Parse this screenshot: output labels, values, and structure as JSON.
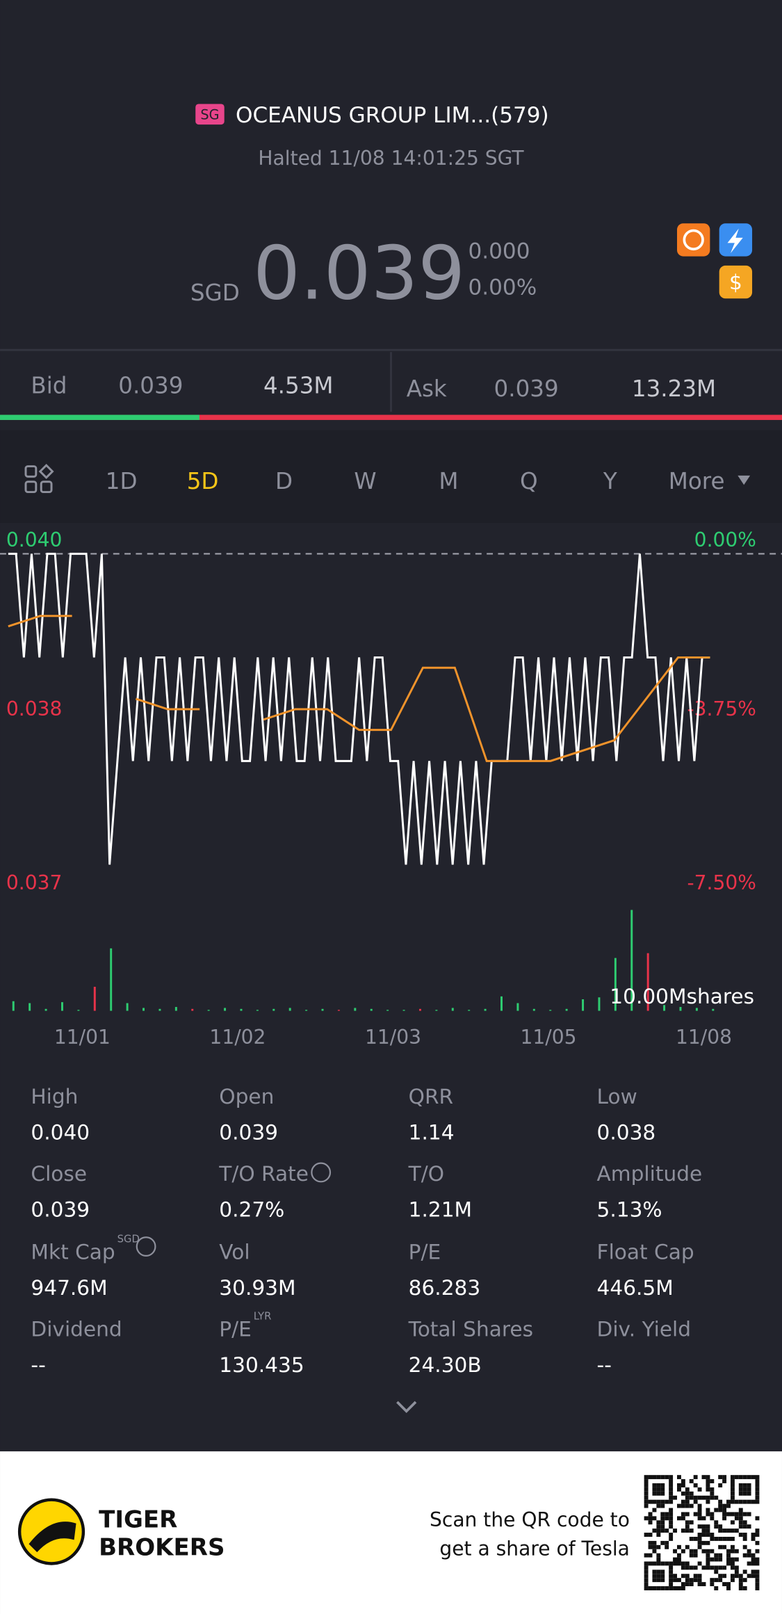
{
  "header": {
    "badge": "SG",
    "title": "OCEANUS GROUP LIM...(579)",
    "status": "Halted 11/08 14:01:25 SGT"
  },
  "quote": {
    "currency": "SGD",
    "price": "0.039",
    "change": "0.000",
    "change_pct": "0.00%"
  },
  "order_book": {
    "bid_label": "Bid",
    "bid_price": "0.039",
    "bid_size": "4.53M",
    "ask_label": "Ask",
    "ask_price": "0.039",
    "ask_size": "13.23M",
    "bid_share": 25.5
  },
  "tabs": [
    "1D",
    "5D",
    "D",
    "W",
    "M",
    "Q",
    "Y",
    "More"
  ],
  "active_tab": 1,
  "chart_data": {
    "type": "line",
    "ylim": [
      0.037,
      0.04
    ],
    "reference": 0.04,
    "price_labels": [
      "0.040",
      "0.038",
      "0.037"
    ],
    "pct_labels": [
      "0.00%",
      "-3.75%",
      "-7.50%"
    ],
    "categories": [
      "11/01",
      "11/02",
      "11/03",
      "11/05",
      "11/08"
    ],
    "price": {
      "color": "#ffffff",
      "values": [
        0.04,
        0.04,
        0.039,
        0.04,
        0.039,
        0.04,
        0.04,
        0.039,
        0.04,
        0.04,
        0.04,
        0.039,
        0.04,
        0.037,
        0.038,
        0.039,
        0.038,
        0.039,
        0.038,
        0.039,
        0.039,
        0.038,
        0.039,
        0.038,
        0.039,
        0.039,
        0.038,
        0.039,
        0.038,
        0.039,
        0.038,
        0.038,
        0.039,
        0.038,
        0.039,
        0.038,
        0.039,
        0.038,
        0.038,
        0.039,
        0.038,
        0.039,
        0.038,
        0.038,
        0.038,
        0.039,
        0.038,
        0.039,
        0.039,
        0.038,
        0.038,
        0.037,
        0.038,
        0.037,
        0.038,
        0.037,
        0.038,
        0.037,
        0.038,
        0.037,
        0.038,
        0.037,
        0.038,
        0.038,
        0.038,
        0.039,
        0.039,
        0.038,
        0.039,
        0.038,
        0.039,
        0.038,
        0.039,
        0.038,
        0.039,
        0.038,
        0.039,
        0.039,
        0.038,
        0.039,
        0.039,
        0.04,
        0.039,
        0.039,
        0.038,
        0.039,
        0.038,
        0.039,
        0.038,
        0.039,
        0.039
      ]
    },
    "average": {
      "color": "#f0932b",
      "values": [
        0.0393,
        0.0394,
        0.0394,
        null,
        0.0386,
        0.0385,
        0.0385,
        null,
        0.0384,
        0.0385,
        0.0385,
        0.0383,
        0.0383,
        0.0389,
        0.0389,
        0.038,
        0.038,
        0.038,
        0.0381,
        0.0382,
        0.0386,
        0.039,
        0.039
      ]
    },
    "volume": {
      "label": "10.00Mshares",
      "ylim": [
        0,
        12000000
      ],
      "values": [
        1000000,
        800000,
        200000,
        900000,
        100000,
        2500000,
        6500000,
        800000,
        300000,
        200000,
        400000,
        200000,
        100000,
        300000,
        200000,
        100000,
        200000,
        300000,
        100000,
        200000,
        100000,
        300000,
        200000,
        100000,
        100000,
        200000,
        100000,
        300000,
        100000,
        200000,
        1500000,
        800000,
        200000,
        100000,
        200000,
        1200000,
        1400000,
        5500000,
        10500000,
        6000000,
        600000,
        400000,
        300000,
        200000
      ],
      "colors": [
        "#2ecc71",
        "#2ecc71",
        "#2ecc71",
        "#2ecc71",
        "#2ecc71",
        "#e8334a",
        "#2ecc71",
        "#2ecc71",
        "#2ecc71",
        "#2ecc71",
        "#2ecc71",
        "#e8334a",
        "#2ecc71",
        "#2ecc71",
        "#2ecc71",
        "#2ecc71",
        "#2ecc71",
        "#2ecc71",
        "#2ecc71",
        "#2ecc71",
        "#e8334a",
        "#2ecc71",
        "#2ecc71",
        "#2ecc71",
        "#2ecc71",
        "#e8334a",
        "#2ecc71",
        "#2ecc71",
        "#2ecc71",
        "#2ecc71",
        "#2ecc71",
        "#2ecc71",
        "#2ecc71",
        "#2ecc71",
        "#2ecc71",
        "#2ecc71",
        "#2ecc71",
        "#2ecc71",
        "#2ecc71",
        "#e8334a",
        "#2ecc71",
        "#2ecc71",
        "#2ecc71",
        "#2ecc71"
      ]
    }
  },
  "stats": [
    {
      "label": "High",
      "value": "0.040"
    },
    {
      "label": "Open",
      "value": "0.039"
    },
    {
      "label": "QRR",
      "value": "1.14"
    },
    {
      "label": "Low",
      "value": "0.038"
    },
    {
      "label": "Close",
      "value": "0.039"
    },
    {
      "label": "T/O Rate",
      "value": "0.27%",
      "info": true
    },
    {
      "label": "T/O",
      "value": "1.21M"
    },
    {
      "label": "Amplitude",
      "value": "5.13%"
    },
    {
      "label": "Mkt Cap",
      "value": "947.6M",
      "sup": "SGD",
      "info": true
    },
    {
      "label": "Vol",
      "value": "30.93M"
    },
    {
      "label": "P/E",
      "value": "86.283"
    },
    {
      "label": "Float Cap",
      "value": "446.5M"
    },
    {
      "label": "Dividend",
      "value": "--"
    },
    {
      "label": "P/E",
      "value": "130.435",
      "sup": "LYR"
    },
    {
      "label": "Total Shares",
      "value": "24.30B"
    },
    {
      "label": "Div. Yield",
      "value": "--"
    }
  ],
  "footer": {
    "brand": [
      "TIGER",
      "BROKERS"
    ],
    "promo": [
      "Scan the QR code to",
      "get a share of Tesla"
    ]
  }
}
